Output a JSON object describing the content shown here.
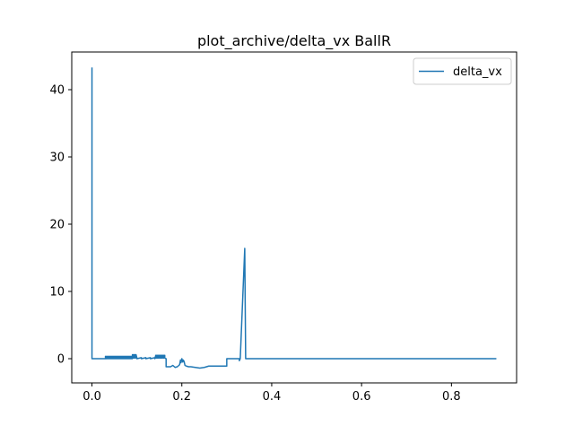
{
  "chart_data": {
    "type": "line",
    "title": "plot_archive/delta_vx BallR",
    "xlabel": "",
    "ylabel": "",
    "xlim": [
      -0.045,
      0.945
    ],
    "ylim": [
      -3.6,
      45.6
    ],
    "xticks": [
      0.0,
      0.2,
      0.4,
      0.6,
      0.8
    ],
    "xtick_labels": [
      "0.0",
      "0.2",
      "0.4",
      "0.6",
      "0.8"
    ],
    "yticks": [
      0,
      10,
      20,
      30,
      40
    ],
    "ytick_labels": [
      "0",
      "10",
      "20",
      "30",
      "40"
    ],
    "grid": false,
    "legend_position": "top-right",
    "series": [
      {
        "name": "delta_vx",
        "color": "#1f77b4",
        "x": [
          0.0,
          0.0,
          0.002,
          0.03,
          0.03,
          0.032,
          0.032,
          0.034,
          0.034,
          0.036,
          0.036,
          0.038,
          0.038,
          0.04,
          0.04,
          0.042,
          0.042,
          0.044,
          0.044,
          0.046,
          0.046,
          0.048,
          0.048,
          0.05,
          0.05,
          0.052,
          0.052,
          0.054,
          0.054,
          0.056,
          0.056,
          0.058,
          0.058,
          0.06,
          0.06,
          0.062,
          0.062,
          0.064,
          0.064,
          0.066,
          0.066,
          0.068,
          0.068,
          0.07,
          0.07,
          0.072,
          0.072,
          0.074,
          0.074,
          0.076,
          0.076,
          0.078,
          0.078,
          0.08,
          0.08,
          0.082,
          0.082,
          0.084,
          0.084,
          0.086,
          0.086,
          0.088,
          0.088,
          0.09,
          0.09,
          0.092,
          0.092,
          0.094,
          0.094,
          0.096,
          0.096,
          0.098,
          0.098,
          0.1,
          0.1,
          0.11,
          0.11,
          0.12,
          0.12,
          0.13,
          0.13,
          0.14,
          0.14,
          0.142,
          0.142,
          0.144,
          0.144,
          0.146,
          0.146,
          0.148,
          0.148,
          0.15,
          0.15,
          0.152,
          0.152,
          0.154,
          0.154,
          0.156,
          0.156,
          0.158,
          0.158,
          0.16,
          0.16,
          0.162,
          0.162,
          0.165,
          0.165,
          0.175,
          0.18,
          0.185,
          0.19,
          0.195,
          0.197,
          0.198,
          0.2,
          0.202,
          0.203,
          0.205,
          0.207,
          0.21,
          0.215,
          0.22,
          0.23,
          0.24,
          0.25,
          0.26,
          0.27,
          0.28,
          0.29,
          0.3,
          0.3,
          0.328,
          0.328,
          0.33,
          0.34,
          0.342,
          0.342,
          0.9
        ],
        "y": [
          43.3,
          0.0,
          0.0,
          0.0,
          0.35,
          0.0,
          0.35,
          0.0,
          0.35,
          0.0,
          0.35,
          0.0,
          0.35,
          0.0,
          0.35,
          0.0,
          0.35,
          0.0,
          0.35,
          0.0,
          0.35,
          0.0,
          0.35,
          0.0,
          0.35,
          0.0,
          0.35,
          0.0,
          0.35,
          0.0,
          0.35,
          0.0,
          0.35,
          0.0,
          0.35,
          0.0,
          0.35,
          0.0,
          0.35,
          0.0,
          0.35,
          0.0,
          0.35,
          0.0,
          0.35,
          0.0,
          0.35,
          0.0,
          0.35,
          0.0,
          0.35,
          0.0,
          0.35,
          0.0,
          0.35,
          0.0,
          0.35,
          0.0,
          0.35,
          0.0,
          0.35,
          0.0,
          0.35,
          0.0,
          0.6,
          0.1,
          0.6,
          0.1,
          0.6,
          0.1,
          0.6,
          0.1,
          0.6,
          0.1,
          0.0,
          0.15,
          0.0,
          0.15,
          0.0,
          0.15,
          0.0,
          0.15,
          0.0,
          0.5,
          0.1,
          0.5,
          0.1,
          0.5,
          0.1,
          0.5,
          0.1,
          0.5,
          0.1,
          0.5,
          0.1,
          0.5,
          0.1,
          0.5,
          0.1,
          0.5,
          0.1,
          0.5,
          0.1,
          0.5,
          0.1,
          0.0,
          -1.2,
          -1.2,
          -1.0,
          -1.3,
          -1.2,
          -0.9,
          -0.2,
          -0.6,
          0.0,
          -0.5,
          -0.2,
          -0.4,
          -1.0,
          -1.1,
          -1.2,
          -1.2,
          -1.3,
          -1.4,
          -1.3,
          -1.1,
          -1.1,
          -1.1,
          -1.1,
          -1.1,
          0.0,
          0.0,
          -0.3,
          0.0,
          16.4,
          0.0,
          0.0,
          0.0
        ]
      }
    ]
  }
}
